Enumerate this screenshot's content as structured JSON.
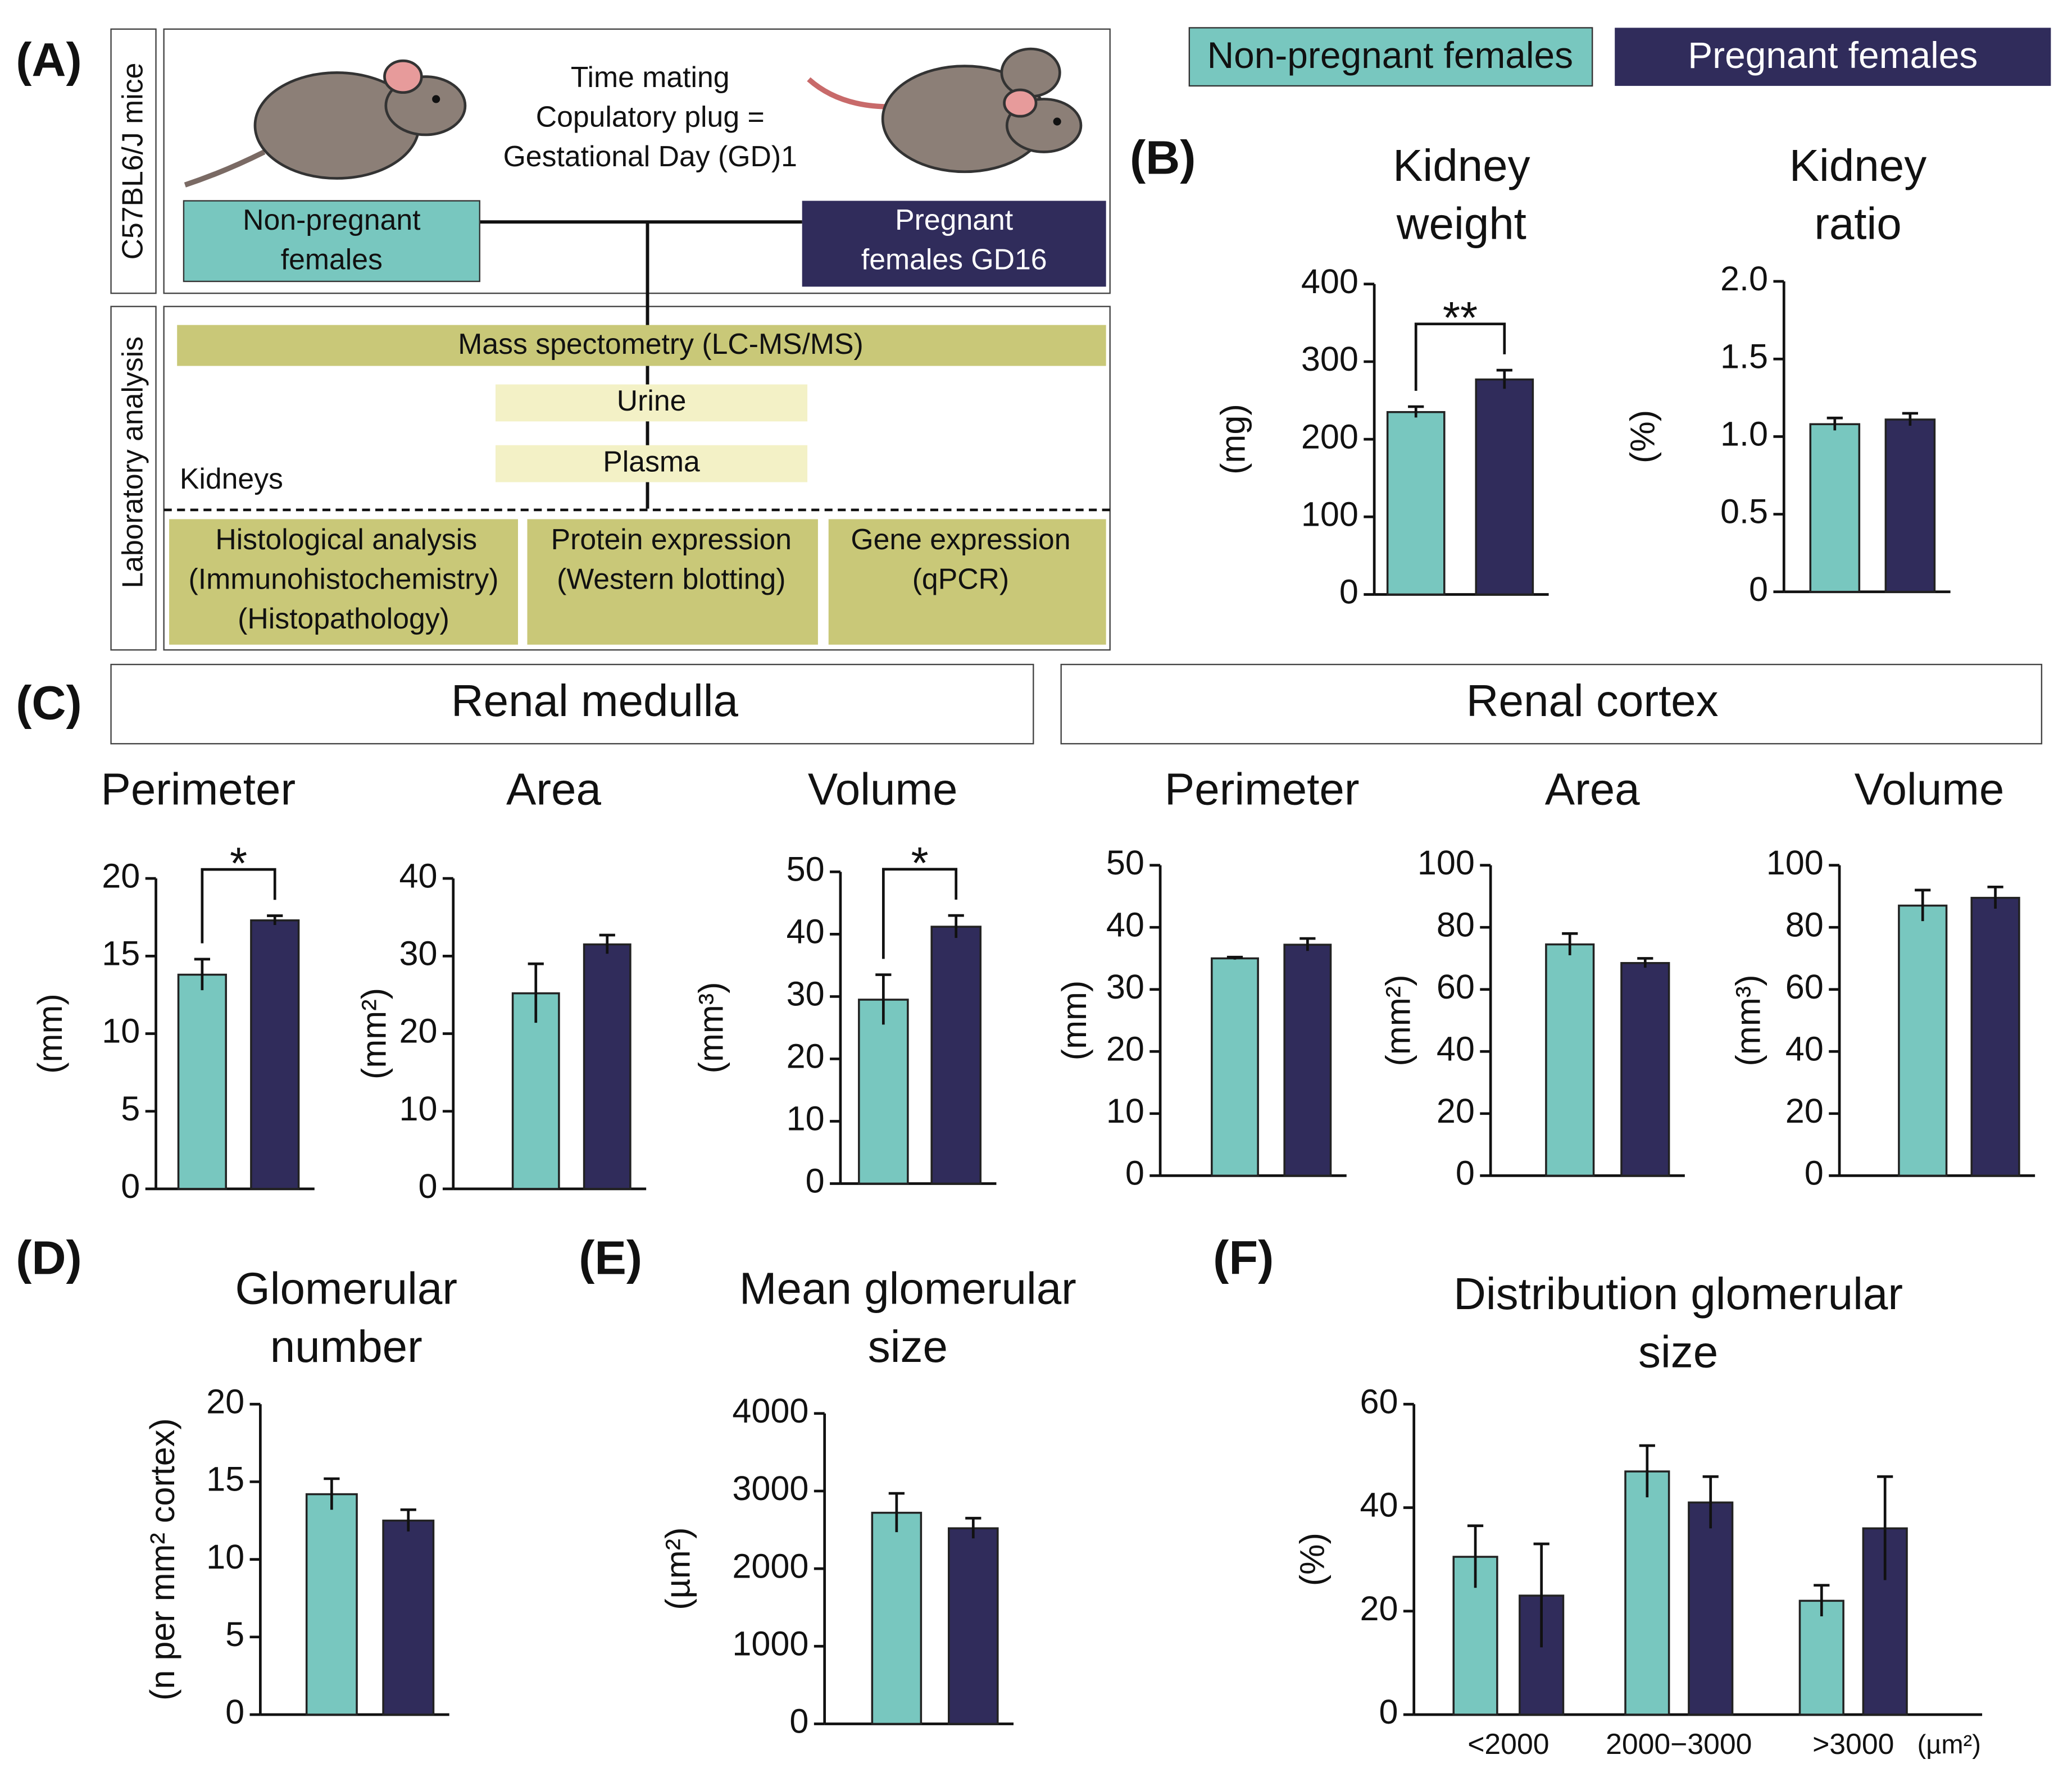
{
  "legend": [
    {
      "name": "Non-pregnant females",
      "color": "#78c7bf"
    },
    {
      "name": "Pregnant females",
      "color": "#302c5b"
    }
  ],
  "panel_labels": [
    "(A)",
    "(B)",
    "(C)",
    "(D)",
    "(E)",
    "(F)"
  ],
  "sections": [
    "Renal medulla",
    "Renal cortex"
  ],
  "panel_a": {
    "side_labels": [
      "C57BL6/J mice",
      "Laboratory analysis"
    ],
    "mating": [
      "Time mating",
      "Copulatory plug =",
      "Gestational Day (GD)1"
    ],
    "groups": [
      [
        "Non-pregnant",
        "females"
      ],
      [
        "Pregnant",
        "females GD16"
      ]
    ],
    "mass_spec": "Mass spectometry (LC-MS/MS)",
    "samples": [
      "Urine",
      "Plasma"
    ],
    "kidneys": "Kidneys",
    "analyses": [
      [
        "Histological analysis",
        "(Immunohistochemistry)",
        "(Histopathology)"
      ],
      [
        "Protein expression",
        "(Western blotting)"
      ],
      [
        "Gene expression",
        "(qPCR)"
      ]
    ]
  },
  "chart_data": [
    {
      "type": "bar",
      "title": [
        "Kidney",
        "weight"
      ],
      "ylabel": "(mg)",
      "values": [
        235,
        277
      ],
      "errors": [
        7,
        12
      ],
      "ylim": [
        0,
        400
      ],
      "yticks": [
        0,
        100,
        200,
        300,
        400
      ],
      "annotation": "**"
    },
    {
      "type": "bar",
      "title": [
        "Kidney",
        "ratio"
      ],
      "ylabel": "(%)",
      "values": [
        1.08,
        1.11
      ],
      "errors": [
        0.04,
        0.04
      ],
      "ylim": [
        0,
        2
      ],
      "yticks": [
        0,
        0.5,
        {
          "value": 1,
          "label": "1.0"
        },
        1.5,
        {
          "value": 2,
          "label": "2.0"
        }
      ]
    },
    {
      "type": "bar",
      "title": [
        "Perimeter"
      ],
      "ylabel": "(mm)",
      "values": [
        13.8,
        17.3
      ],
      "errors": [
        1,
        0.3
      ],
      "ylim": [
        0,
        20
      ],
      "yticks": [
        0,
        5,
        10,
        15,
        20
      ],
      "annotation": "*"
    },
    {
      "type": "bar",
      "title": [
        "Area"
      ],
      "ylabel": "(mm²)",
      "values": [
        25.2,
        31.5
      ],
      "errors": [
        3.8,
        1.2
      ],
      "ylim": [
        0,
        40
      ],
      "yticks": [
        0,
        10,
        20,
        30,
        40
      ]
    },
    {
      "type": "bar",
      "title": [
        "Volume"
      ],
      "ylabel": "(mm³)",
      "values": [
        29.5,
        41.2
      ],
      "errors": [
        4,
        1.8
      ],
      "ylim": [
        0,
        50
      ],
      "yticks": [
        0,
        10,
        20,
        30,
        40,
        50
      ],
      "annotation": "*"
    },
    {
      "type": "bar",
      "title": [
        "Perimeter"
      ],
      "ylabel": "(mm)",
      "values": [
        35,
        37.2
      ],
      "errors": [
        0.2,
        1
      ],
      "ylim": [
        0,
        50
      ],
      "yticks": [
        0,
        10,
        20,
        30,
        40,
        50
      ]
    },
    {
      "type": "bar",
      "title": [
        "Area"
      ],
      "ylabel": "(mm²)",
      "values": [
        74.5,
        68.5
      ],
      "errors": [
        3.5,
        1.5
      ],
      "ylim": [
        0,
        100
      ],
      "yticks": [
        0,
        20,
        40,
        60,
        80,
        100
      ]
    },
    {
      "type": "bar",
      "title": [
        "Volume"
      ],
      "ylabel": "(mm³)",
      "values": [
        87,
        89.5
      ],
      "errors": [
        5,
        3.5
      ],
      "ylim": [
        0,
        100
      ],
      "yticks": [
        0,
        20,
        40,
        60,
        80,
        100
      ]
    },
    {
      "type": "bar",
      "title": [
        "Glomerular",
        "number"
      ],
      "ylabel": "(n per mm² cortex)",
      "values": [
        14.2,
        12.5
      ],
      "errors": [
        1,
        0.7
      ],
      "ylim": [
        0,
        20
      ],
      "yticks": [
        0,
        5,
        10,
        15,
        20
      ]
    },
    {
      "type": "bar",
      "title": [
        "Mean glomerular",
        "size"
      ],
      "ylabel": "(µm²)",
      "values": [
        2720,
        2520
      ],
      "errors": [
        250,
        130
      ],
      "ylim": [
        0,
        4000
      ],
      "yticks": [
        0,
        1000,
        2000,
        3000,
        4000
      ]
    },
    {
      "type": "grouped_bar",
      "title": [
        "Distribution glomerular",
        "size"
      ],
      "ylabel": "(%)",
      "categories": [
        "<2000",
        "2000−3000",
        ">3000"
      ],
      "x_unit": "(µm²)",
      "series": [
        {
          "values": [
            30.5,
            47,
            22
          ],
          "errors": [
            6,
            5,
            3
          ]
        },
        {
          "values": [
            23,
            41,
            36
          ],
          "errors": [
            10,
            5,
            10
          ]
        }
      ],
      "ylim": [
        0,
        60
      ],
      "yticks": [
        0,
        20,
        40,
        60
      ]
    }
  ]
}
